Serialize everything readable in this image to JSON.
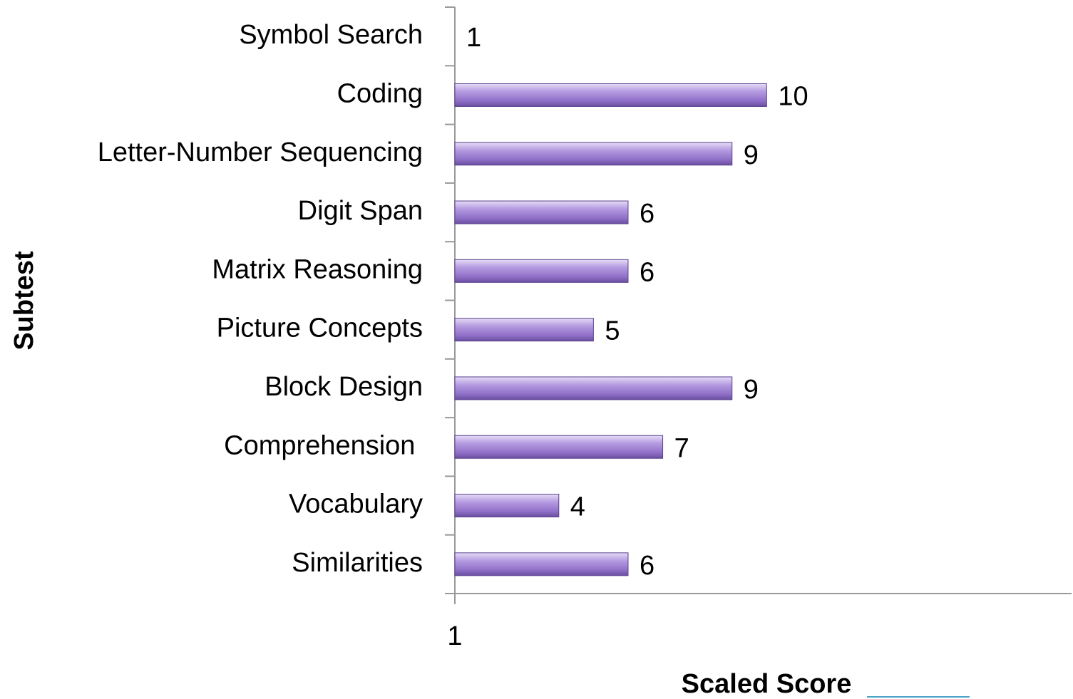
{
  "chart_data": {
    "type": "bar",
    "orientation": "horizontal",
    "categories": [
      "Symbol Search",
      "Coding",
      "Letter-Number Sequencing",
      "Digit Span",
      "Matrix Reasoning",
      "Picture Concepts",
      "Block Design",
      "Comprehension ",
      "Vocabulary",
      "Similarities"
    ],
    "values": [
      1,
      10,
      9,
      6,
      6,
      5,
      9,
      7,
      4,
      6
    ],
    "color": "#a78bd6",
    "xlim": [
      1,
      18.8
    ],
    "xticks": [
      1
    ],
    "x_label": "Scaled Score",
    "y_label": "Subtest"
  }
}
